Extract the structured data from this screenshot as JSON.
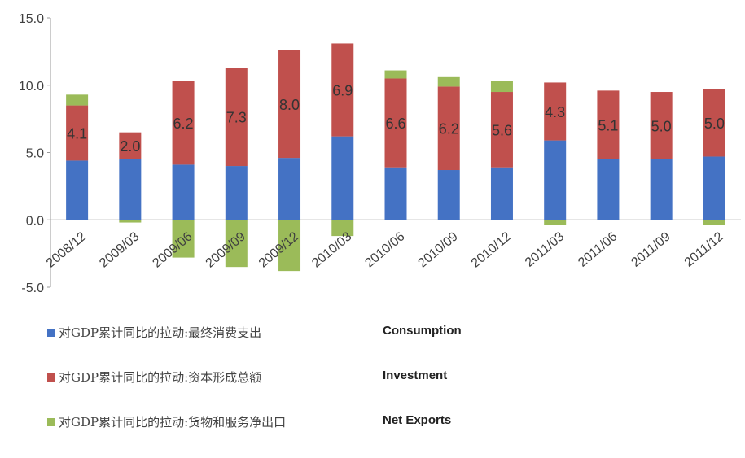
{
  "chart_data": {
    "type": "bar",
    "stacked": true,
    "categories": [
      "2008/12",
      "2009/03",
      "2009/06",
      "2009/09",
      "2009/12",
      "2010/03",
      "2010/06",
      "2010/09",
      "2010/12",
      "2011/03",
      "2011/06",
      "2011/09",
      "2011/12"
    ],
    "series": [
      {
        "key": "consumption",
        "name": "对GDP累计同比的拉动:最终消费支出",
        "name_en": "Consumption",
        "color": "#4472C4",
        "values": [
          4.4,
          4.5,
          4.1,
          4.0,
          4.6,
          6.2,
          3.9,
          3.7,
          3.9,
          5.9,
          4.5,
          4.5,
          4.7
        ]
      },
      {
        "key": "investment",
        "name": "对GDP累计同比的拉动:资本形成总额",
        "name_en": "Investment",
        "color": "#C0504D",
        "values": [
          4.1,
          2.0,
          6.2,
          7.3,
          8.0,
          6.9,
          6.6,
          6.2,
          5.6,
          4.3,
          5.1,
          5.0,
          5.0
        ],
        "labels": [
          "4.1",
          "2.0",
          "6.2",
          "7.3",
          "8.0",
          "6.9",
          "6.6",
          "6.2",
          "5.6",
          "4.3",
          "5.1",
          "5.0",
          "5.0"
        ]
      },
      {
        "key": "net_exports",
        "name": "对GDP累计同比的拉动:货物和服务净出口",
        "name_en": "Net Exports",
        "color": "#9BBB59",
        "values": [
          0.8,
          -0.2,
          -2.8,
          -3.5,
          -3.8,
          -1.2,
          0.6,
          0.7,
          0.8,
          -0.4,
          0.0,
          0.0,
          -0.4
        ]
      }
    ],
    "ylim": [
      -5.0,
      15.0
    ],
    "yticks": [
      "15.0",
      "10.0",
      "5.0",
      "0.0",
      "-5.0"
    ],
    "grid": false,
    "legend_position": "bottom-left"
  }
}
